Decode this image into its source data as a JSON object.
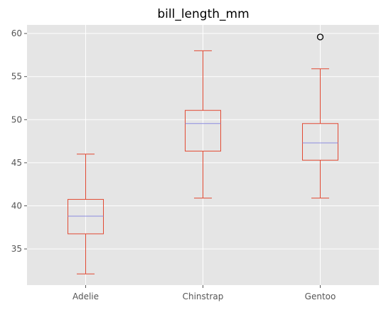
{
  "chart_data": {
    "type": "box",
    "title": "bill_length_mm",
    "xlabel": "",
    "ylabel": "",
    "categories": [
      "Adelie",
      "Chinstrap",
      "Gentoo"
    ],
    "boxes": [
      {
        "category": "Adelie",
        "whisker_low": 32.1,
        "q1": 36.75,
        "median": 38.8,
        "q3": 40.75,
        "whisker_high": 46.0,
        "outliers": []
      },
      {
        "category": "Chinstrap",
        "whisker_low": 40.9,
        "q1": 46.35,
        "median": 49.55,
        "q3": 51.08,
        "whisker_high": 58.0,
        "outliers": []
      },
      {
        "category": "Gentoo",
        "whisker_low": 40.9,
        "q1": 45.3,
        "median": 47.3,
        "q3": 49.55,
        "whisker_high": 55.9,
        "outliers": [
          59.6
        ]
      }
    ],
    "ylim": [
      30.8,
      61.0
    ],
    "yticks": [
      35,
      40,
      45,
      50,
      55,
      60
    ],
    "grid": true,
    "legend": "none",
    "colors": {
      "background": "#e5e5e5",
      "grid": "#ffffff",
      "box": "#e24a33",
      "median": "#8c8ce0",
      "outlier": "#000000",
      "tick_text": "#555555"
    }
  }
}
